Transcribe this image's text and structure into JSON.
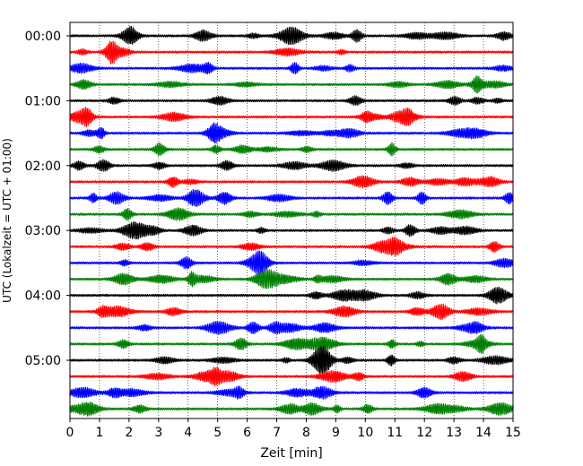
{
  "chart_data": {
    "type": "line",
    "subtype": "dayplot-seismogram",
    "xlabel": "Zeit  [min]",
    "ylabel": "UTC (Lokalzeit = UTC + 01:00)",
    "xlim": [
      0,
      15
    ],
    "x_ticks": [
      "0",
      "1",
      "2",
      "3",
      "4",
      "5",
      "6",
      "7",
      "8",
      "9",
      "10",
      "11",
      "12",
      "13",
      "14",
      "15"
    ],
    "y_ticks": [
      "00:00",
      "01:00",
      "02:00",
      "03:00",
      "04:00",
      "05:00"
    ],
    "grid": "vertical dotted lines at each minute",
    "row_interval_minutes": 15,
    "row_count": 24,
    "row_colors": [
      "#000000",
      "#ff0000",
      "#0000ff",
      "#008000"
    ],
    "row_start_times": [
      "00:00",
      "00:15",
      "00:30",
      "00:45",
      "01:00",
      "01:15",
      "01:30",
      "01:45",
      "02:00",
      "02:15",
      "02:30",
      "02:45",
      "03:00",
      "03:15",
      "03:30",
      "03:45",
      "04:00",
      "04:15",
      "04:30",
      "04:45",
      "05:00",
      "05:15",
      "05:30",
      "05:45"
    ]
  }
}
